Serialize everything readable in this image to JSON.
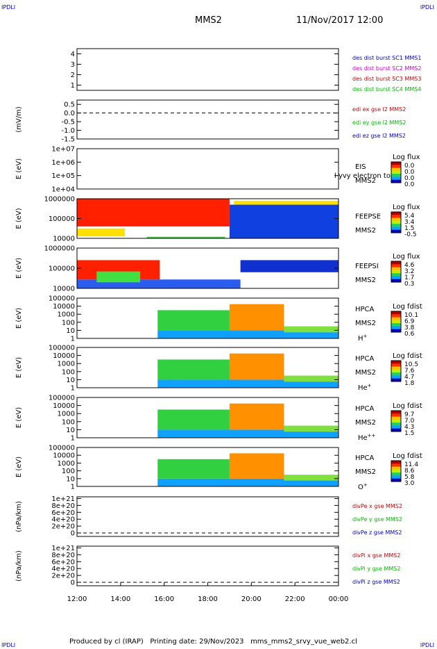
{
  "header": {
    "corner_label": "IPDLI",
    "spacecraft": "MMS2",
    "datetime": "11/Nov/2017 12:00"
  },
  "footer": {
    "produced_by": "Produced by cl (IRAP)",
    "printing_date": "Printing date: 29/Nov/2023",
    "script_name": "mms_mms2_srvy_vue_web2.cl"
  },
  "chart_data": {
    "type": "heatmap",
    "x_ticks": [
      "12:00",
      "14:00",
      "16:00",
      "18:00",
      "20:00",
      "22:00",
      "00:00"
    ],
    "x_range_hours": [
      12,
      24
    ],
    "panels": [
      {
        "id": "burst",
        "kind": "line",
        "ylabel": "",
        "ylim": [
          0.5,
          4.5
        ],
        "ticks": [
          "4",
          "3",
          "2",
          "1"
        ],
        "tick_values": [
          4,
          3,
          2,
          1
        ],
        "legend": [
          {
            "text": "des dist burst SC1 MMS1",
            "color": "#0000cc"
          },
          {
            "text": "des dist burst SC2 MMS2",
            "color": "#cc00cc"
          },
          {
            "text": "des dist burst SC3 MMS3",
            "color": "#cc0000"
          },
          {
            "text": "des dist burst SC4 MMS4",
            "color": "#00bb00"
          }
        ]
      },
      {
        "id": "edi",
        "kind": "line",
        "ylabel": "(mV/m)",
        "ylim": [
          -1.5,
          0.75
        ],
        "ticks": [
          "0.5",
          "0.0",
          "-0.5",
          "-1.0",
          "-1.5"
        ],
        "tick_values": [
          0.5,
          0.0,
          -0.5,
          -1.0,
          -1.5
        ],
        "zero_line": 0,
        "legend": [
          {
            "text": "edi ex gse l2 MMS2",
            "color": "#cc0000"
          },
          {
            "text": "edi ey gse l2 MMS2",
            "color": "#00bb00"
          },
          {
            "text": "edi ez gse l2 MMS2",
            "color": "#0000cc"
          }
        ]
      },
      {
        "id": "eis",
        "kind": "spectrogram",
        "ylabel": "E (eV)",
        "ticks": [
          "1e+07",
          "1e+06",
          "1e+05",
          "1e+04"
        ],
        "instrument": "EIS",
        "overlay_text": "l yvy electron to",
        "spacecraft": "MMS2",
        "colorbar_title": "Log flux",
        "colorbar_ticks": [
          "0.0",
          "0.0",
          "0.0",
          "0.0"
        ]
      },
      {
        "id": "feepse",
        "kind": "spectrogram",
        "ylabel": "E (eV)",
        "ticks": [
          "1000000",
          "100000",
          "10000"
        ],
        "instrument": "FEEPSE",
        "spacecraft": "MMS2",
        "colorbar_title": "Log flux",
        "colorbar_ticks": [
          "5.4",
          "3.4",
          "1.5",
          "-0.5"
        ]
      },
      {
        "id": "feepsi",
        "kind": "spectrogram",
        "ylabel": "E (eV)",
        "ticks": [
          "1000000",
          "100000",
          "10000"
        ],
        "instrument": "FEEPSI",
        "spacecraft": "MMS2",
        "colorbar_title": "Log flux",
        "colorbar_ticks": [
          "4.6",
          "3.2",
          "1.7",
          "0.3"
        ]
      },
      {
        "id": "hpca_h",
        "kind": "spectrogram",
        "ylabel": "E (eV)",
        "ticks": [
          "100000",
          "10000",
          "1000",
          "100",
          "10",
          "1"
        ],
        "instrument": "HPCA",
        "spacecraft": "MMS2",
        "species": "H",
        "species_sup": "+",
        "colorbar_title": "Log fdist",
        "colorbar_ticks": [
          "10.1",
          "6.9",
          "3.8",
          "0.6"
        ]
      },
      {
        "id": "hpca_he1",
        "kind": "spectrogram",
        "ylabel": "E (eV)",
        "ticks": [
          "100000",
          "10000",
          "1000",
          "100",
          "10",
          "1"
        ],
        "instrument": "HPCA",
        "spacecraft": "MMS2",
        "species": "He",
        "species_sup": "+",
        "colorbar_title": "Log fdist",
        "colorbar_ticks": [
          "10.5",
          "7.6",
          "4.7",
          "1.8"
        ]
      },
      {
        "id": "hpca_he2",
        "kind": "spectrogram",
        "ylabel": "E (eV)",
        "ticks": [
          "100000",
          "10000",
          "1000",
          "100",
          "10",
          "1"
        ],
        "instrument": "HPCA",
        "spacecraft": "MMS2",
        "species": "He",
        "species_sup": "++",
        "colorbar_title": "Log fdist",
        "colorbar_ticks": [
          "9.7",
          "7.0",
          "4.3",
          "1.5"
        ]
      },
      {
        "id": "hpca_o",
        "kind": "spectrogram",
        "ylabel": "E (eV)",
        "ticks": [
          "100000",
          "10000",
          "1000",
          "100",
          "10",
          "1"
        ],
        "instrument": "HPCA",
        "spacecraft": "MMS2",
        "species": "O",
        "species_sup": "+",
        "colorbar_title": "Log fdist",
        "colorbar_ticks": [
          "11.4",
          "8.6",
          "5.8",
          "3.0"
        ]
      },
      {
        "id": "divpe",
        "kind": "line",
        "ylabel": "(nPa/km)",
        "ylim": [
          -1e+20,
          1.05e+21
        ],
        "ticks": [
          "1e+21",
          "8e+20",
          "6e+20",
          "4e+20",
          "2e+20",
          "0"
        ],
        "tick_values": [
          1e+21,
          8e+20,
          6e+20,
          4e+20,
          2e+20,
          0
        ],
        "zero_line": 0,
        "legend": [
          {
            "text": "divPe x gse MMS2",
            "color": "#cc0000"
          },
          {
            "text": "divPe y gse MMS2",
            "color": "#00bb00"
          },
          {
            "text": "divPe z gse MMS2",
            "color": "#0000cc"
          }
        ]
      },
      {
        "id": "divpi",
        "kind": "line",
        "ylabel": "(nPa/km)",
        "ylim": [
          -1e+20,
          1.05e+21
        ],
        "ticks": [
          "1e+21",
          "8e+20",
          "6e+20",
          "4e+20",
          "2e+20",
          "0"
        ],
        "tick_values": [
          1e+21,
          8e+20,
          6e+20,
          4e+20,
          2e+20,
          0
        ],
        "zero_line": 0,
        "legend": [
          {
            "text": "divPi x gse MMS2",
            "color": "#cc0000"
          },
          {
            "text": "divPi y gse MMS2",
            "color": "#00bb00"
          },
          {
            "text": "divPi z gse MMS2",
            "color": "#0000cc"
          }
        ]
      }
    ],
    "spectra": {
      "feepse": [
        {
          "t": [
            12.0,
            19.0
          ],
          "color": "#ff2000",
          "e": [
            0.3,
            1.0
          ]
        },
        {
          "t": [
            12.0,
            14.2
          ],
          "color": "#ffe000",
          "e": [
            0.05,
            0.25
          ]
        },
        {
          "t": [
            15.2,
            18.8
          ],
          "color": "#30e030",
          "e": [
            0.0,
            0.04
          ]
        },
        {
          "t": [
            19.0,
            24.0
          ],
          "color": "#1040e0",
          "e": [
            0.0,
            0.85
          ]
        },
        {
          "t": [
            19.2,
            24.0
          ],
          "color": "#ffe000",
          "e": [
            0.85,
            0.95
          ]
        }
      ],
      "feepsi": [
        {
          "t": [
            12.0,
            19.5
          ],
          "color": "#2a5cf0",
          "e": [
            0.0,
            0.22
          ]
        },
        {
          "t": [
            12.0,
            15.8
          ],
          "color": "#ff2000",
          "e": [
            0.22,
            0.7
          ]
        },
        {
          "t": [
            12.9,
            14.9
          ],
          "color": "#40e040",
          "e": [
            0.15,
            0.42
          ]
        },
        {
          "t": [
            19.5,
            24.0
          ],
          "color": "#1030d0",
          "e": [
            0.4,
            0.7
          ]
        }
      ],
      "hpca": [
        {
          "t": [
            15.7,
            24.0
          ],
          "color": "#10a0ff",
          "e": [
            0.0,
            0.2
          ]
        },
        {
          "t": [
            15.7,
            19.0
          ],
          "color": "#30d040",
          "e": [
            0.2,
            0.7
          ]
        },
        {
          "t": [
            19.0,
            21.5
          ],
          "color": "#ff9000",
          "e": [
            0.2,
            0.85
          ]
        },
        {
          "t": [
            21.5,
            24.0
          ],
          "color": "#80e040",
          "e": [
            0.15,
            0.3
          ]
        }
      ]
    }
  }
}
